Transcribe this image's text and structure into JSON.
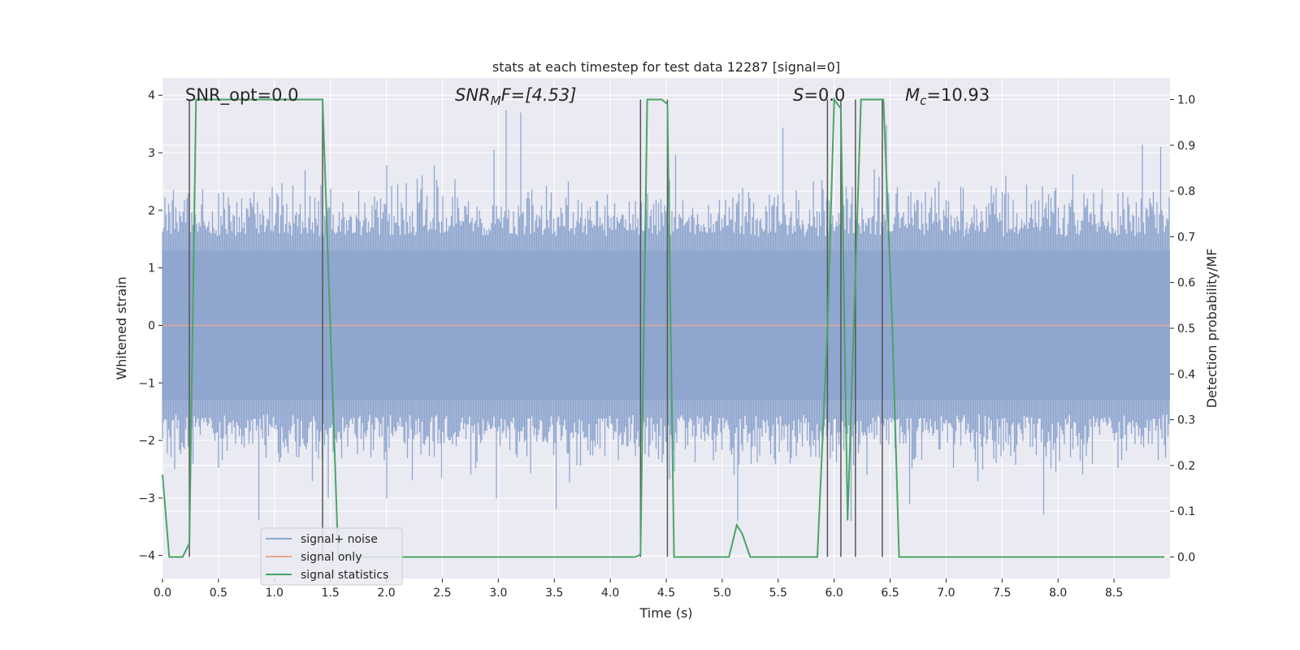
{
  "chart_data": {
    "type": "line",
    "title": "stats at each timestep for test data 12287 [signal=0]",
    "xlabel": "Time (s)",
    "ylabel": "Whitened strain",
    "y2label": "Detection probability/MF",
    "xlim": [
      0,
      9.0
    ],
    "ylim": [
      -4.4,
      4.3
    ],
    "y2lim": [
      -0.047,
      1.047
    ],
    "xticks": [
      0.0,
      0.5,
      1.0,
      1.5,
      2.0,
      2.5,
      3.0,
      3.5,
      4.0,
      4.5,
      5.0,
      5.5,
      6.0,
      6.5,
      7.0,
      7.5,
      8.0,
      8.5
    ],
    "xtick_labels": [
      "0.0",
      "0.5",
      "1.0",
      "1.5",
      "2.0",
      "2.5",
      "3.0",
      "3.5",
      "4.0",
      "4.5",
      "5.0",
      "5.5",
      "6.0",
      "6.5",
      "7.0",
      "7.5",
      "8.0",
      "8.5"
    ],
    "yticks": [
      4,
      3,
      2,
      1,
      0,
      -1,
      -2,
      -3,
      -4
    ],
    "ytick_labels": [
      "4",
      "3",
      "2",
      "1",
      "0",
      "−1",
      "−2",
      "−3",
      "−4"
    ],
    "y2ticks": [
      1.0,
      0.9,
      0.8,
      0.7,
      0.6,
      0.5,
      0.4,
      0.3,
      0.2,
      0.1,
      0.0
    ],
    "y2tick_labels": [
      "1.0",
      "0.9",
      "0.8",
      "0.7",
      "0.6",
      "0.5",
      "0.4",
      "0.3",
      "0.2",
      "0.1",
      "0.0"
    ],
    "grid": true,
    "legend_position": "lower-left",
    "annotations": {
      "snr_opt": "SNR_opt=0.0",
      "snr_mf_sym": "SNR",
      "snr_mf_sub": "M",
      "snr_mf_tail": "F=[4.53]",
      "s_sym": "S",
      "s_tail": "=0.0",
      "mc_sym": "M",
      "mc_sub": "c",
      "mc_tail": "=10.93"
    },
    "series": [
      {
        "name": "signal+ noise",
        "color": "#8fa6cf",
        "description": "whitened noise, approx. amplitude 1.6 with peaks up to 3.7",
        "sample_rate_hz": 2048
      },
      {
        "name": "signal only",
        "color": "#e8a88f",
        "values_constant": 0.0
      },
      {
        "name": "signal statistics",
        "color": "#4aa564",
        "axis": "right",
        "x": [
          0.0,
          0.06,
          0.18,
          0.24,
          0.3,
          1.43,
          1.57,
          4.22,
          4.27,
          4.33,
          4.46,
          4.51,
          4.57,
          5.06,
          5.13,
          5.18,
          5.25,
          5.85,
          5.94,
          6.0,
          6.06,
          6.12,
          6.24,
          6.42,
          6.44,
          6.52,
          6.58,
          8.95
        ],
        "values": [
          0.18,
          0.0,
          0.0,
          0.03,
          1.0,
          1.0,
          0.0,
          0.0,
          0.005,
          1.0,
          1.0,
          0.99,
          0.0,
          0.0,
          0.07,
          0.05,
          0.0,
          0.0,
          0.5,
          1.0,
          0.98,
          0.08,
          1.0,
          1.0,
          1.0,
          0.5,
          0.0,
          0.0
        ]
      }
    ],
    "vertical_markers": [
      0.24,
      1.43,
      4.27,
      4.51,
      5.94,
      6.06,
      6.19,
      6.43
    ]
  },
  "legend": {
    "items": [
      {
        "label": "signal+ noise",
        "color": "#8fa6cf"
      },
      {
        "label": "signal only",
        "color": "#e8a88f"
      },
      {
        "label": "signal statistics",
        "color": "#4aa564"
      }
    ]
  },
  "colors": {
    "axes_bg": "#eaeaf2",
    "grid": "#ffffff",
    "marker_line": "#555555"
  }
}
